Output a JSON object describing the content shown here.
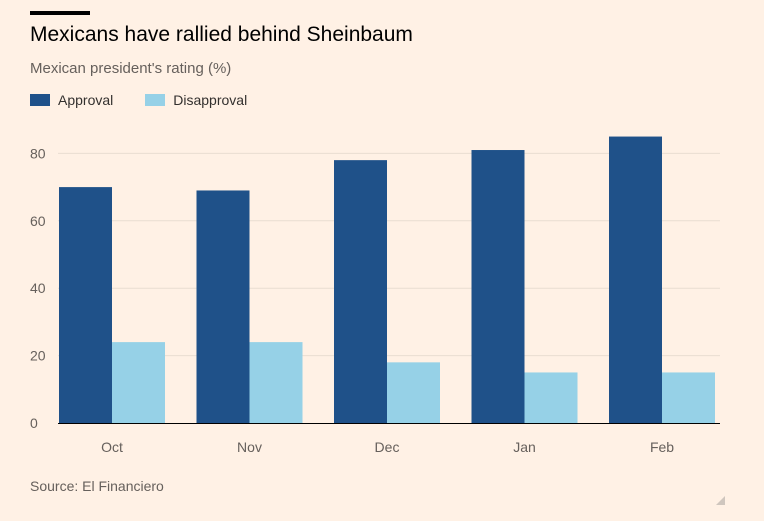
{
  "header": {
    "title": "Mexicans have rallied behind Sheinbaum",
    "subtitle": "Mexican president's rating (%)"
  },
  "footer": {
    "source": "Source: El Financiero"
  },
  "colors": {
    "background": "#fff1e5",
    "approval": "#1f5189",
    "disapproval": "#96d1e7",
    "gridline": "#e9ddd2",
    "text_muted": "#66605c"
  },
  "chart_data": {
    "type": "bar",
    "title": "Mexicans have rallied behind Sheinbaum",
    "subtitle": "Mexican president's rating (%)",
    "xlabel": "",
    "ylabel": "",
    "categories": [
      "Oct",
      "Nov",
      "Dec",
      "Jan",
      "Feb"
    ],
    "series": [
      {
        "name": "Approval",
        "color": "#1f5189",
        "values": [
          70,
          69,
          78,
          81,
          85
        ]
      },
      {
        "name": "Disapproval",
        "color": "#96d1e7",
        "values": [
          24,
          24,
          18,
          15,
          15
        ]
      }
    ],
    "ylim": [
      0,
      90
    ],
    "yticks": [
      0,
      20,
      40,
      60,
      80
    ],
    "ytick_labels": [
      "0",
      "20",
      "40",
      "60",
      "80"
    ],
    "grid": true,
    "legend_position": "top-left"
  }
}
